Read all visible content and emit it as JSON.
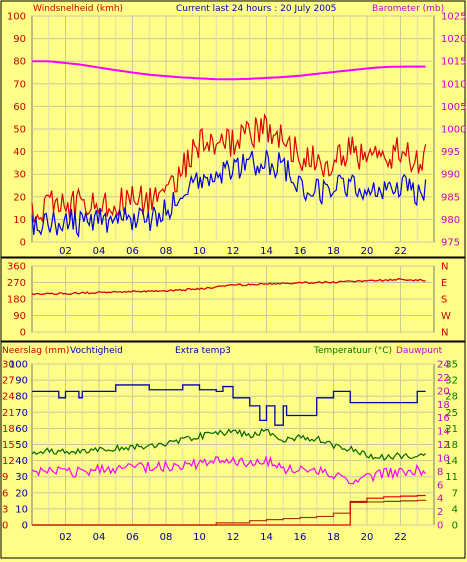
{
  "chart_data": [
    {
      "type": "line",
      "title": "Current last 24 hours : 20 July 2005",
      "left_axis_label": "Windsnelheid (kmh)",
      "right_axis_label": "Barometer (mb)",
      "left_ticks": [
        "0",
        "10",
        "20",
        "30",
        "40",
        "50",
        "60",
        "70",
        "80",
        "90",
        "100"
      ],
      "right_ticks": [
        "975",
        "980",
        "985",
        "990",
        "995",
        "1000",
        "1005",
        "1010",
        "1015",
        "1020",
        "1025"
      ],
      "x_ticks": [
        "02",
        "04",
        "06",
        "08",
        "10",
        "12",
        "14",
        "16",
        "18",
        "20",
        "22"
      ],
      "x_range_hours": [
        0,
        24
      ],
      "left_ylim": [
        0,
        100
      ],
      "right_ylim": [
        975,
        1025
      ],
      "grid": true,
      "series": [
        {
          "color": "#ff00ff",
          "axis": "right",
          "x": [
            0,
            1,
            2,
            3,
            4,
            5,
            6,
            7,
            8,
            9,
            10,
            11,
            12,
            13,
            14,
            15,
            16,
            17,
            18,
            19,
            20,
            21,
            22,
            23,
            23.5
          ],
          "values": [
            1015,
            1015,
            1014.6,
            1014.2,
            1013.6,
            1013.0,
            1012.5,
            1012.0,
            1011.7,
            1011.4,
            1011.2,
            1011.0,
            1011.0,
            1011.1,
            1011.3,
            1011.5,
            1011.8,
            1012.2,
            1012.6,
            1013.0,
            1013.4,
            1013.7,
            1013.8,
            1013.8,
            1013.8
          ]
        },
        {
          "color": "#dd0000",
          "axis": "left",
          "x": [
            0,
            1,
            2,
            3,
            4,
            5,
            6,
            7,
            8,
            9,
            10,
            11,
            12,
            13,
            14,
            15,
            16,
            17,
            18,
            19,
            20,
            21,
            22,
            23,
            23.5
          ],
          "values": [
            15,
            16,
            17,
            16,
            19,
            17,
            20,
            18,
            22,
            33,
            44,
            40,
            45,
            48,
            50,
            47,
            38,
            35,
            36,
            40,
            37,
            38,
            40,
            37,
            38
          ]
        },
        {
          "color": "#0000dd",
          "axis": "left",
          "x": [
            0,
            1,
            2,
            3,
            4,
            5,
            6,
            7,
            8,
            9,
            10,
            11,
            12,
            13,
            14,
            15,
            16,
            17,
            18,
            19,
            20,
            21,
            22,
            23,
            23.5
          ],
          "values": [
            6,
            8,
            9,
            8,
            10,
            9,
            11,
            10,
            14,
            22,
            30,
            28,
            32,
            35,
            36,
            33,
            24,
            22,
            24,
            26,
            23,
            24,
            25,
            22,
            24
          ]
        }
      ]
    },
    {
      "type": "line",
      "left_ticks": [
        "0",
        "90",
        "180",
        "270",
        "360"
      ],
      "right_ticks": [
        "N",
        "W",
        "S",
        "E",
        "N"
      ],
      "left_ylim": [
        0,
        360
      ],
      "x_range_hours": [
        0,
        24
      ],
      "grid": true,
      "series": [
        {
          "color": "#dd0000",
          "x": [
            0,
            2,
            4,
            6,
            8,
            10,
            12,
            14,
            16,
            18,
            20,
            22,
            23.5
          ],
          "values": [
            205,
            210,
            215,
            220,
            225,
            235,
            255,
            262,
            268,
            272,
            278,
            286,
            280
          ]
        }
      ]
    },
    {
      "type": "line",
      "left_axis_label": "Neerslag (mm)",
      "left2_axis_label": "Vochtigheid",
      "middle_label": "Extra temp3",
      "right_axis_label": "Temperatuur (°C)",
      "right2_axis_label": "Dauwpunt",
      "left_ticks": [
        "0",
        "3",
        "6",
        "9",
        "12",
        "15",
        "18",
        "21",
        "24",
        "27",
        "30"
      ],
      "left2_ticks": [
        "0",
        "10",
        "20",
        "30",
        "40",
        "50",
        "60",
        "70",
        "80",
        "90",
        "100"
      ],
      "right_ticks": [
        "0",
        "4",
        "7",
        "11",
        "14",
        "18",
        "21",
        "25",
        "28",
        "32",
        "35"
      ],
      "right2_ticks": [
        "0",
        "2",
        "4",
        "6",
        "8",
        "10",
        "12",
        "14",
        "16",
        "18",
        "20",
        "22",
        "24"
      ],
      "x_ticks": [
        "02",
        "04",
        "06",
        "08",
        "10",
        "12",
        "14",
        "16",
        "18",
        "20",
        "22"
      ],
      "x_range_hours": [
        0,
        24
      ],
      "grid": true,
      "series": [
        {
          "color": "#0000aa",
          "x": [
            0,
            1,
            1.6,
            2,
            2.8,
            3,
            5,
            6,
            7,
            8,
            9,
            10,
            11,
            11.4,
            12,
            12.6,
            13,
            13.6,
            14,
            14.5,
            15,
            15.2,
            16,
            17,
            18,
            19,
            20,
            21,
            22,
            23,
            23.5
          ],
          "values": [
            83,
            83,
            79,
            83,
            79,
            83,
            87,
            87,
            84,
            84,
            87,
            84,
            83,
            86,
            79,
            79,
            74,
            65,
            74,
            62,
            74,
            68,
            68,
            79,
            83,
            76,
            76,
            76,
            76,
            83,
            83
          ]
        },
        {
          "color": "#006600",
          "x": [
            0,
            1,
            2,
            3,
            4,
            5,
            6,
            7,
            8,
            9,
            10,
            11,
            12,
            13,
            14,
            15,
            16,
            17,
            18,
            19,
            20,
            21,
            22,
            23,
            23.5
          ],
          "values": [
            16,
            16,
            16,
            16.3,
            16.5,
            16.6,
            16.8,
            17.2,
            17.8,
            18.6,
            19.3,
            19.8,
            20.2,
            19.6,
            20.4,
            18.5,
            19.2,
            18.7,
            17.3,
            16.5,
            15.1,
            14.6,
            15.1,
            15.0,
            15.3
          ]
        },
        {
          "color": "#ff00ff",
          "x": [
            0,
            1,
            2,
            3,
            4,
            5,
            6,
            7,
            8,
            9,
            10,
            11,
            12,
            13,
            14,
            15,
            16,
            17,
            18,
            19,
            20,
            21,
            22,
            23,
            23.5
          ],
          "values": [
            7.5,
            8,
            7.8,
            8,
            8.2,
            8.2,
            8.4,
            8.6,
            8.8,
            8.9,
            9.2,
            9.6,
            9.8,
            9.2,
            9.6,
            8.4,
            8.2,
            8.0,
            7.5,
            6.7,
            7.2,
            7.6,
            7.9,
            8.1,
            8.2
          ]
        },
        {
          "color": "#aa3300",
          "x": [
            0,
            1,
            2,
            3,
            4,
            5,
            6,
            7,
            8,
            9,
            10,
            11,
            11,
            12,
            13,
            13,
            14,
            15,
            15,
            16,
            17,
            18,
            19,
            19,
            20,
            21,
            22,
            23,
            23.5
          ],
          "values": [
            0,
            0,
            0,
            0,
            0,
            0,
            0,
            0,
            0,
            0,
            0,
            0,
            0.4,
            0.4,
            0.4,
            0.8,
            1.0,
            1.0,
            1.2,
            1.4,
            1.6,
            2.2,
            2.8,
            4.2,
            4.3,
            4.4,
            4.5,
            4.6,
            4.7
          ]
        },
        {
          "color": "#dd0000",
          "x": [
            0,
            1,
            2,
            3,
            4,
            5,
            6,
            7,
            8,
            9,
            10,
            11,
            12,
            13,
            14,
            15,
            16,
            17,
            18,
            19,
            20,
            21,
            22,
            23,
            23.5
          ],
          "values": [
            0,
            0,
            0,
            0,
            0,
            0,
            0,
            0,
            0,
            0,
            0,
            0,
            0,
            0,
            0,
            0,
            0,
            0,
            0,
            3.5,
            4.0,
            4.2,
            4.3,
            4.4,
            4.4
          ]
        }
      ]
    }
  ]
}
